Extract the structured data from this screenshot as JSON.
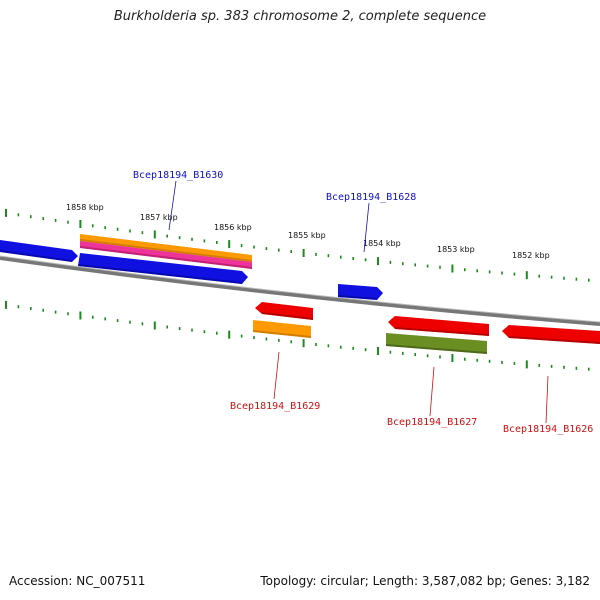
{
  "title": "Burkholderia sp. 383 chromosome 2, complete sequence",
  "accession": "Accession: NC_007511",
  "summary": "Topology: circular; Length: 3,587,082 bp; Genes: 3,182",
  "colors": {
    "tick": "#1a8c1a",
    "backbone": "#888888",
    "forward_label": "#1010c0",
    "reverse_label": "#cc1010"
  },
  "scale_labels": [
    "1858 kbp",
    "1857 kbp",
    "1856 kbp",
    "1855 kbp",
    "1854 kbp",
    "1853 kbp",
    "1852 kbp"
  ],
  "gene_labels": {
    "b1630": "Bcep18194_B1630",
    "b1628": "Bcep18194_B1628",
    "b1629": "Bcep18194_B1629",
    "b1627": "Bcep18194_B1627",
    "b1626": "Bcep18194_B1626"
  },
  "feature_colors": {
    "blue": "#1010e0",
    "orange": "#ff9900",
    "magenta": "#ee3399",
    "red": "#ee0000",
    "olive": "#6b8e23"
  }
}
